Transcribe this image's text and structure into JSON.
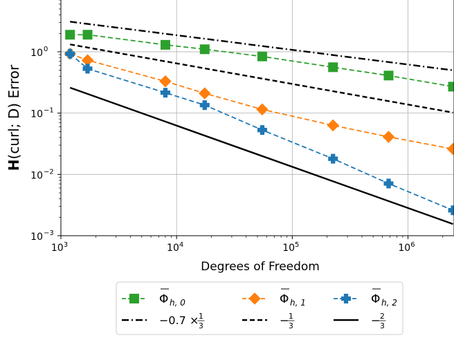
{
  "chart_data": {
    "type": "line",
    "x_scale": "log",
    "y_scale": "log",
    "xlim": [
      1000,
      2500000
    ],
    "ylim": [
      0.001,
      7
    ],
    "grid": true,
    "xlabel": "Degrees of Freedom",
    "ylabel_bold": "H",
    "ylabel_rest": "(curl; D) Error",
    "x_ticks": [
      {
        "value": 1000,
        "mantissa": "10",
        "exp": "3"
      },
      {
        "value": 10000,
        "mantissa": "10",
        "exp": "4"
      },
      {
        "value": 100000,
        "mantissa": "10",
        "exp": "5"
      },
      {
        "value": 1000000,
        "mantissa": "10",
        "exp": "6"
      }
    ],
    "y_ticks": [
      {
        "value": 0.001,
        "mantissa": "10",
        "exp": "−3"
      },
      {
        "value": 0.01,
        "mantissa": "10",
        "exp": "−2"
      },
      {
        "value": 0.1,
        "mantissa": "10",
        "exp": "−1"
      },
      {
        "value": 1,
        "mantissa": "10",
        "exp": "0"
      }
    ],
    "series": [
      {
        "name": "Φ̃_{h,0}",
        "color": "#2ca02c",
        "marker": "square",
        "linestyle": "dashed",
        "x": [
          1200,
          1700,
          8000,
          17500,
          55000,
          225000,
          680000,
          2450000
        ],
        "y": [
          1.9,
          1.9,
          1.3,
          1.1,
          0.84,
          0.56,
          0.41,
          0.27
        ]
      },
      {
        "name": "Φ̃_{h,1}",
        "color": "#ff7f0e",
        "marker": "diamond",
        "linestyle": "dashed",
        "x": [
          1200,
          1700,
          8000,
          17500,
          55000,
          225000,
          680000,
          2450000
        ],
        "y": [
          0.93,
          0.73,
          0.33,
          0.21,
          0.115,
          0.063,
          0.041,
          0.026
        ]
      },
      {
        "name": "Φ̃_{h,2}",
        "color": "#1f77b4",
        "marker": "plus",
        "linestyle": "dashed",
        "x": [
          1200,
          1700,
          8000,
          17500,
          55000,
          225000,
          680000,
          2450000
        ],
        "y": [
          0.93,
          0.53,
          0.215,
          0.135,
          0.053,
          0.018,
          0.0071,
          0.0026
        ]
      }
    ],
    "reference_lines": [
      {
        "name": "−0.7 × 1/3",
        "color": "#000000",
        "linestyle": "dashdot",
        "x": [
          1200,
          2450000
        ],
        "y": [
          3.1,
          0.5
        ]
      },
      {
        "name": "−1/3",
        "color": "#000000",
        "linestyle": "dashed",
        "x": [
          1200,
          2450000
        ],
        "y": [
          1.32,
          0.102
        ]
      },
      {
        "name": "−2/3",
        "color": "#000000",
        "linestyle": "solid",
        "x": [
          1200,
          2450000
        ],
        "y": [
          0.26,
          0.00155
        ]
      }
    ],
    "legend": {
      "placement": "below",
      "columns": 3,
      "entries": [
        {
          "kind": "series",
          "index": 0,
          "base": "Φ",
          "sub": "h, 0"
        },
        {
          "kind": "series",
          "index": 1,
          "base": "Φ",
          "sub": "h, 1"
        },
        {
          "kind": "series",
          "index": 2,
          "base": "Φ",
          "sub": "h, 2"
        },
        {
          "kind": "ref",
          "index": 0,
          "prefix": "−0.7 × ",
          "num": "1",
          "den": "3"
        },
        {
          "kind": "ref",
          "index": 1,
          "prefix": "−",
          "num": "1",
          "den": "3"
        },
        {
          "kind": "ref",
          "index": 2,
          "prefix": "−",
          "num": "2",
          "den": "3"
        }
      ]
    }
  }
}
